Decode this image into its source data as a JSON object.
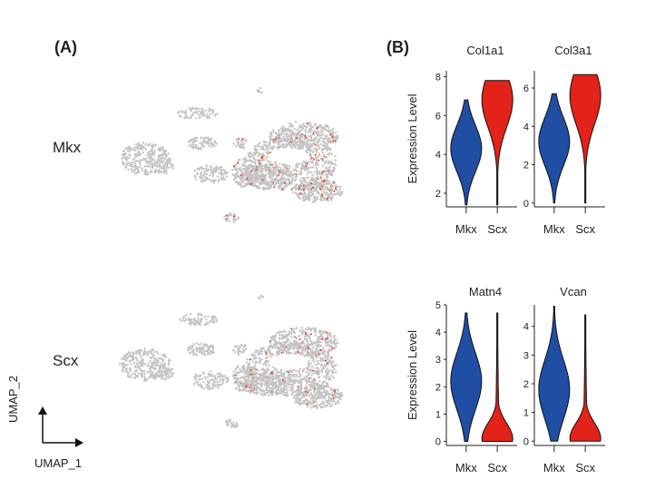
{
  "panel_a": {
    "label": "(A)",
    "rows": [
      {
        "gene": "Mkx",
        "highlight_density": 0.08
      },
      {
        "gene": "Scx",
        "highlight_density": 0.06
      }
    ],
    "umap_axes": {
      "x": "UMAP_1",
      "y": "UMAP_2"
    },
    "colors": {
      "cells": "#c4c4c4",
      "expressing": "#d8573b"
    }
  },
  "panel_b": {
    "label": "(B)",
    "ylabel": "Expression Level"
  },
  "chart_data": [
    {
      "type": "violin",
      "title": "Col1a1",
      "ylabel": "Expression Level",
      "categories": [
        "Mkx",
        "Scx"
      ],
      "ylim": [
        1.3,
        8.3
      ],
      "yticks": [
        2,
        4,
        6,
        8
      ],
      "series": [
        {
          "category": "Mkx",
          "color": "#1f4ea3",
          "min": 1.4,
          "max": 6.8,
          "mode": 4.3
        },
        {
          "category": "Scx",
          "color": "#e32219",
          "min": 1.4,
          "max": 7.8,
          "mode": 6.8
        }
      ]
    },
    {
      "type": "violin",
      "title": "Col3a1",
      "categories": [
        "Mkx",
        "Scx"
      ],
      "ylim": [
        -0.2,
        6.9
      ],
      "yticks": [
        0,
        2,
        4,
        6
      ],
      "series": [
        {
          "category": "Mkx",
          "color": "#1f4ea3",
          "min": 0,
          "max": 5.7,
          "mode": 3.2
        },
        {
          "category": "Scx",
          "color": "#e32219",
          "min": 0,
          "max": 6.7,
          "mode": 5.6
        }
      ]
    },
    {
      "type": "violin",
      "title": "Matn4",
      "ylabel": "Expression Level",
      "categories": [
        "Mkx",
        "Scx"
      ],
      "ylim": [
        -0.15,
        5
      ],
      "yticks": [
        0,
        1,
        2,
        3,
        4,
        5
      ],
      "series": [
        {
          "category": "Mkx",
          "color": "#1f4ea3",
          "min": 0,
          "max": 4.7,
          "mode": 2.2
        },
        {
          "category": "Scx",
          "color": "#e32219",
          "min": 0,
          "max": 4.7,
          "mode": 0.1
        }
      ]
    },
    {
      "type": "violin",
      "title": "Vcan",
      "categories": [
        "Mkx",
        "Scx"
      ],
      "ylim": [
        -0.15,
        4.75
      ],
      "yticks": [
        0,
        1,
        2,
        3,
        4
      ],
      "series": [
        {
          "category": "Mkx",
          "color": "#1f4ea3",
          "min": 0,
          "max": 4.7,
          "mode": 1.8
        },
        {
          "category": "Scx",
          "color": "#e32219",
          "min": 0,
          "max": 4.4,
          "mode": 0.1
        }
      ]
    }
  ]
}
